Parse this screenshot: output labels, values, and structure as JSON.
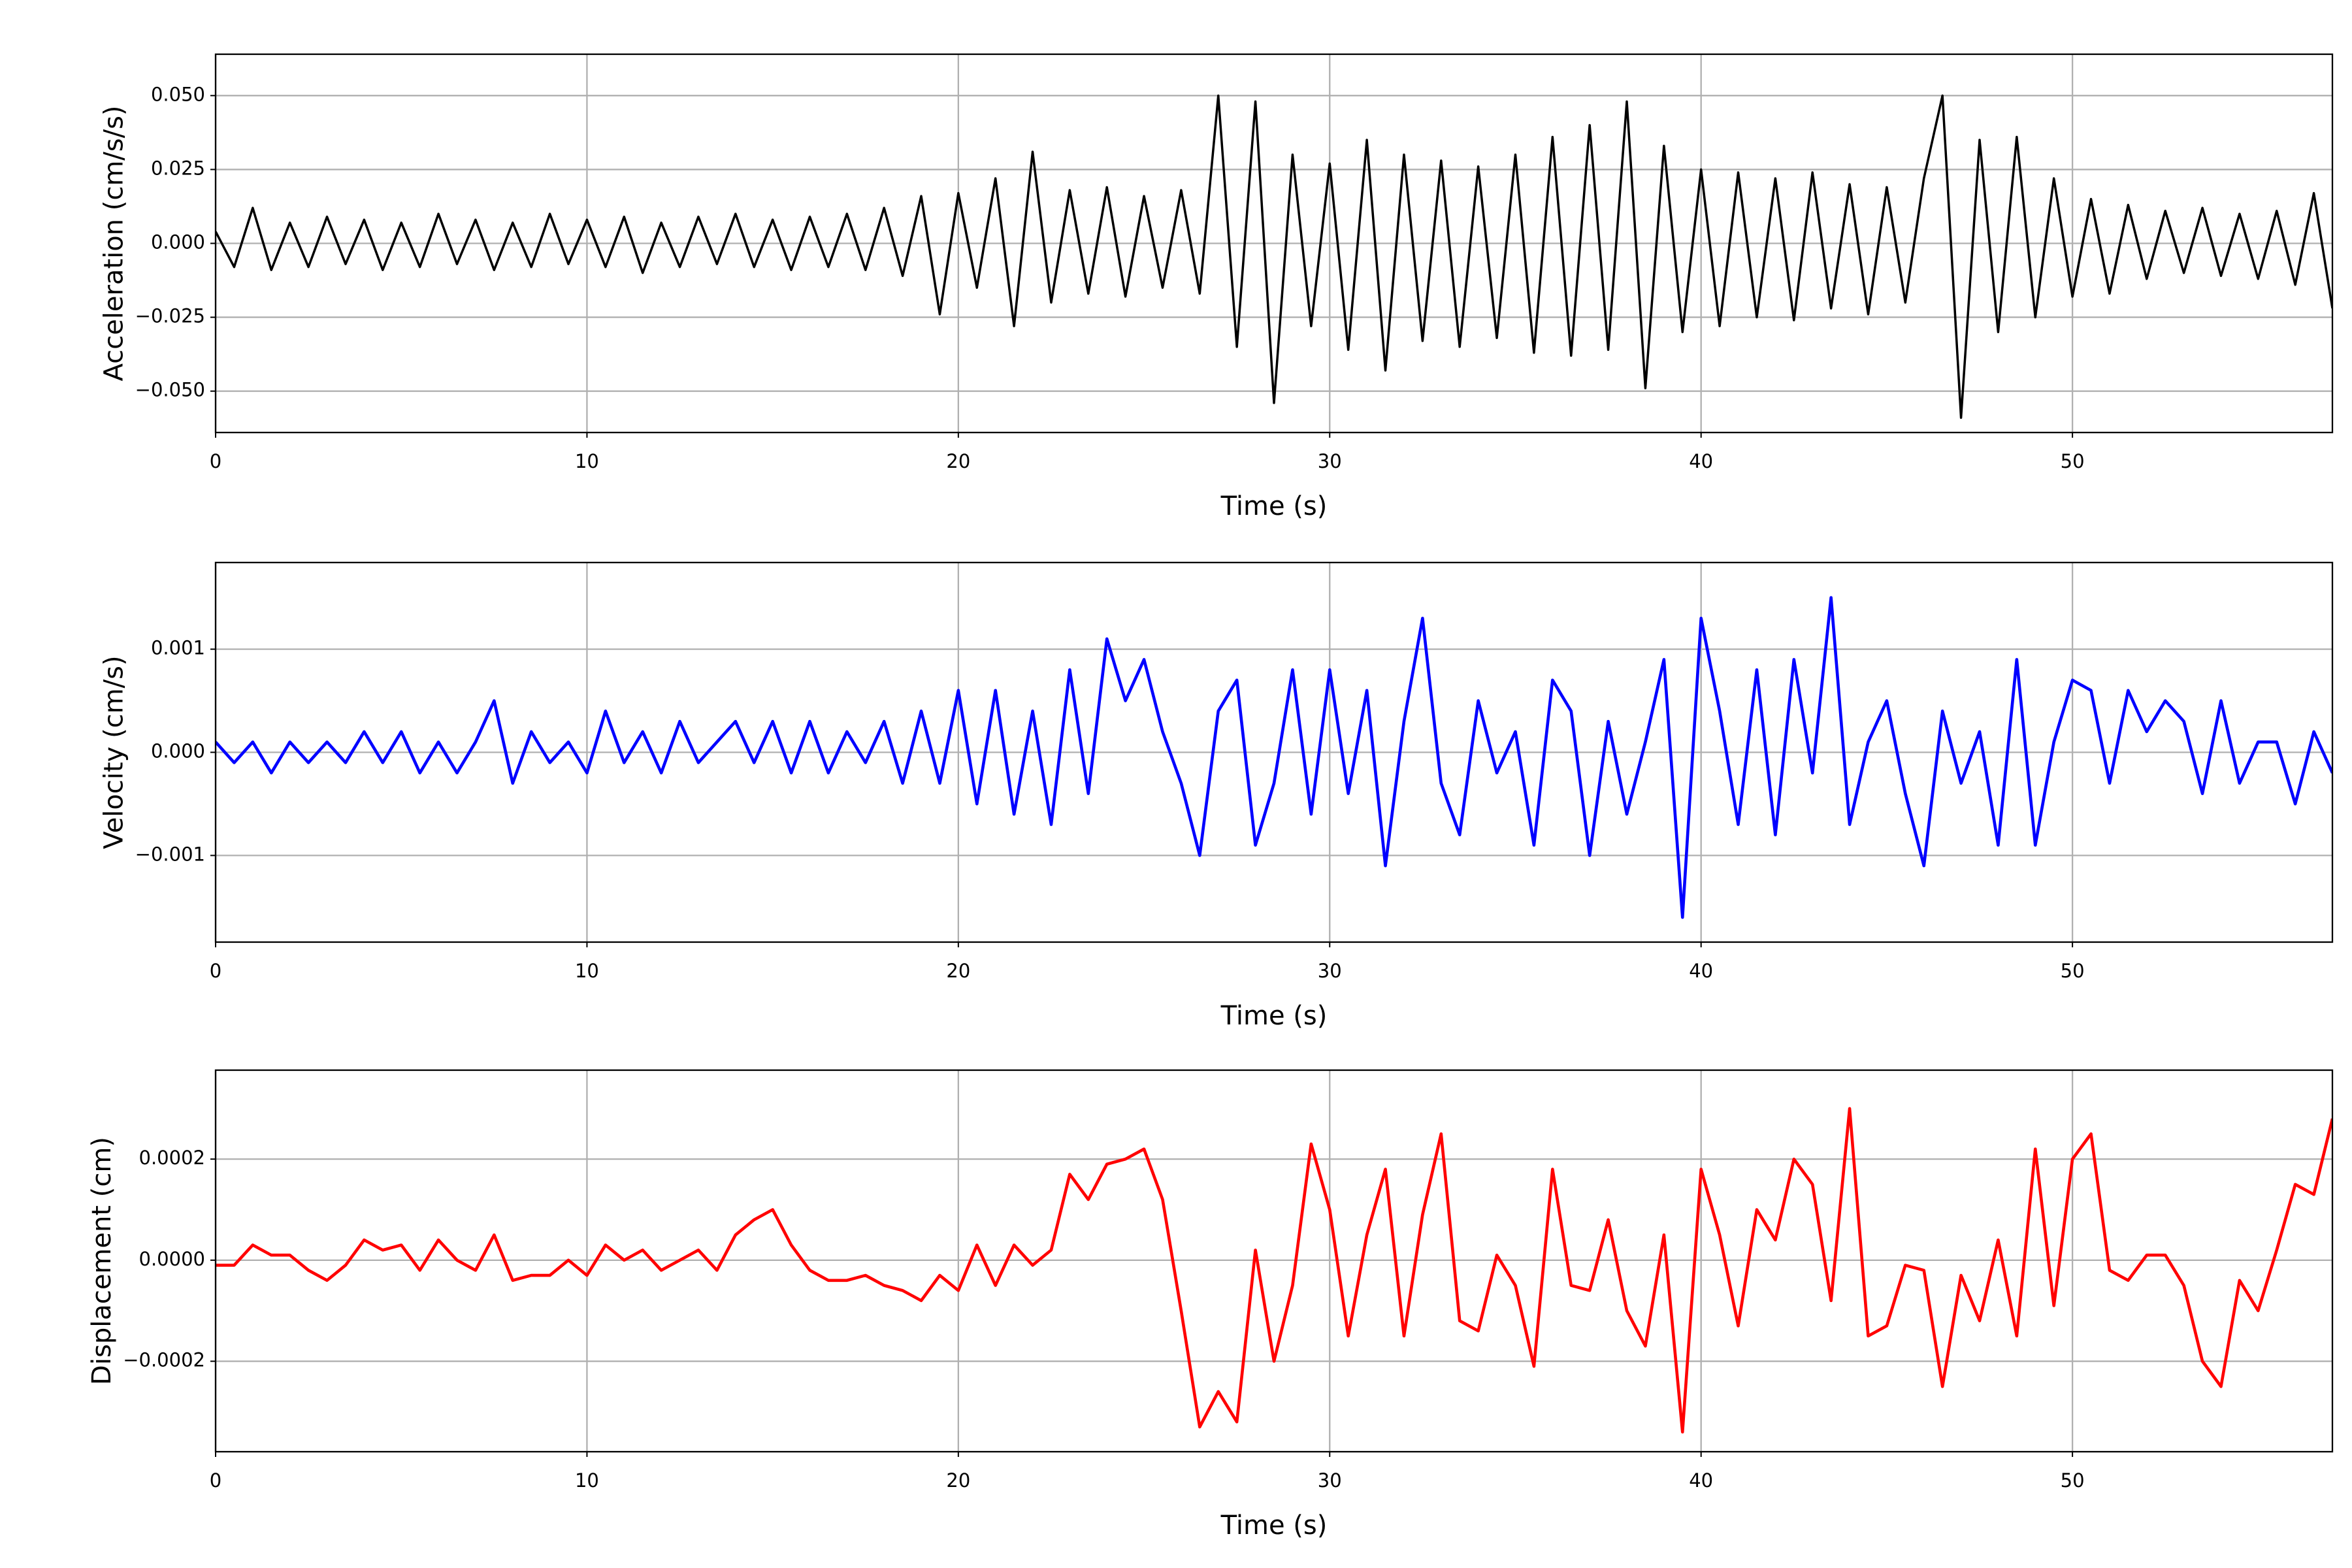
{
  "chart_data": [
    {
      "type": "line",
      "ylabel": "Acceleration (cm/s/s)",
      "xlabel": "Time (s)",
      "grid": true,
      "xlim": [
        0,
        57
      ],
      "xticks": [
        0,
        10,
        20,
        30,
        40,
        50
      ],
      "ylim": [
        -0.064,
        0.064
      ],
      "yticks": [
        {
          "value": -0.05,
          "label": "−0.050"
        },
        {
          "value": -0.025,
          "label": "−0.025"
        },
        {
          "value": 0,
          "label": "0.000"
        },
        0.025,
        {
          "value": 0.05,
          "label": "0.050"
        }
      ],
      "x": [
        0,
        0.5,
        1,
        1.5,
        2,
        2.5,
        3,
        3.5,
        4,
        4.5,
        5,
        5.5,
        6,
        6.5,
        7,
        7.5,
        8,
        8.5,
        9,
        9.5,
        10,
        10.5,
        11,
        11.5,
        12,
        12.5,
        13,
        13.5,
        14,
        14.5,
        15,
        15.5,
        16,
        16.5,
        17,
        17.5,
        18,
        18.5,
        19,
        19.5,
        20,
        20.5,
        21,
        21.5,
        22,
        22.5,
        23,
        23.5,
        24,
        24.5,
        25,
        25.5,
        26,
        26.5,
        27,
        27.5,
        28,
        28.5,
        29,
        29.5,
        30,
        30.5,
        31,
        31.5,
        32,
        32.5,
        33,
        33.5,
        34,
        34.5,
        35,
        35.5,
        36,
        36.5,
        37,
        37.5,
        38,
        38.5,
        39,
        39.5,
        40,
        40.5,
        41,
        41.5,
        42,
        42.5,
        43,
        43.5,
        44,
        44.5,
        45,
        45.5,
        46,
        46.5,
        47,
        47.5,
        48,
        48.5,
        49,
        49.5,
        50,
        50.5,
        51,
        51.5,
        52,
        52.5,
        53,
        53.5,
        54,
        54.5,
        55,
        55.5,
        56,
        56.5,
        57
      ],
      "series": [
        {
          "color": "#000000",
          "values": [
            0.004,
            -0.008,
            0.012,
            -0.009,
            0.007,
            -0.008,
            0.009,
            -0.007,
            0.008,
            -0.009,
            0.007,
            -0.008,
            0.01,
            -0.007,
            0.008,
            -0.009,
            0.007,
            -0.008,
            0.01,
            -0.007,
            0.008,
            -0.008,
            0.009,
            -0.01,
            0.007,
            -0.008,
            0.009,
            -0.007,
            0.01,
            -0.008,
            0.008,
            -0.009,
            0.009,
            -0.008,
            0.01,
            -0.009,
            0.012,
            -0.011,
            0.016,
            -0.024,
            0.017,
            -0.015,
            0.022,
            -0.028,
            0.031,
            -0.02,
            0.018,
            -0.017,
            0.019,
            -0.018,
            0.016,
            -0.015,
            0.018,
            -0.017,
            0.05,
            -0.035,
            0.048,
            -0.054,
            0.03,
            -0.028,
            0.027,
            -0.036,
            0.035,
            -0.043,
            0.03,
            -0.033,
            0.028,
            -0.035,
            0.026,
            -0.032,
            0.03,
            -0.037,
            0.036,
            -0.038,
            0.04,
            -0.036,
            0.048,
            -0.049,
            0.033,
            -0.03,
            0.025,
            -0.028,
            0.024,
            -0.025,
            0.022,
            -0.026,
            0.024,
            -0.022,
            0.02,
            -0.024,
            0.019,
            -0.02,
            0.022,
            0.05,
            -0.059,
            0.035,
            -0.03,
            0.036,
            -0.025,
            0.022,
            -0.018,
            0.015,
            -0.017,
            0.013,
            -0.012,
            0.011,
            -0.01,
            0.012,
            -0.011,
            0.01,
            -0.012,
            0.011,
            -0.014,
            0.017,
            -0.022
          ]
        }
      ]
    },
    {
      "type": "line",
      "ylabel": "Velocity (cm/s)",
      "xlabel": "Time (s)",
      "grid": true,
      "xlim": [
        0,
        57
      ],
      "xticks": [
        0,
        10,
        20,
        30,
        40,
        50
      ],
      "ylim": [
        -0.00184,
        0.00184
      ],
      "yticks": [
        {
          "value": -0.001,
          "label": "−0.001"
        },
        {
          "value": 0,
          "label": "0.000"
        },
        0.001
      ],
      "x": [
        0,
        0.5,
        1,
        1.5,
        2,
        2.5,
        3,
        3.5,
        4,
        4.5,
        5,
        5.5,
        6,
        6.5,
        7,
        7.5,
        8,
        8.5,
        9,
        9.5,
        10,
        10.5,
        11,
        11.5,
        12,
        12.5,
        13,
        13.5,
        14,
        14.5,
        15,
        15.5,
        16,
        16.5,
        17,
        17.5,
        18,
        18.5,
        19,
        19.5,
        20,
        20.5,
        21,
        21.5,
        22,
        22.5,
        23,
        23.5,
        24,
        24.5,
        25,
        25.5,
        26,
        26.5,
        27,
        27.5,
        28,
        28.5,
        29,
        29.5,
        30,
        30.5,
        31,
        31.5,
        32,
        32.5,
        33,
        33.5,
        34,
        34.5,
        35,
        35.5,
        36,
        36.5,
        37,
        37.5,
        38,
        38.5,
        39,
        39.5,
        40,
        40.5,
        41,
        41.5,
        42,
        42.5,
        43,
        43.5,
        44,
        44.5,
        45,
        45.5,
        46,
        46.5,
        47,
        47.5,
        48,
        48.5,
        49,
        49.5,
        50,
        50.5,
        51,
        51.5,
        52,
        52.5,
        53,
        53.5,
        54,
        54.5,
        55,
        55.5,
        56,
        56.5,
        57
      ],
      "series": [
        {
          "color": "#0000ff",
          "values": [
            0.0001,
            -0.0001,
            0.0001,
            -0.0002,
            0.0001,
            -0.0001,
            0.0001,
            -0.0001,
            0.0002,
            -0.0001,
            0.0002,
            -0.0002,
            0.0001,
            -0.0002,
            0.0001,
            0.0005,
            -0.0003,
            0.0002,
            -0.0001,
            0.0001,
            -0.0002,
            0.0004,
            -0.0001,
            0.0002,
            -0.0002,
            0.0003,
            -0.0001,
            0.0001,
            0.0003,
            -0.0001,
            0.0003,
            -0.0002,
            0.0003,
            -0.0002,
            0.0002,
            -0.0001,
            0.0003,
            -0.0003,
            0.0004,
            -0.0003,
            0.0006,
            -0.0005,
            0.0006,
            -0.0006,
            0.0004,
            -0.0007,
            0.0008,
            -0.0004,
            0.0011,
            0.0005,
            0.0009,
            0.0002,
            -0.0003,
            -0.001,
            0.0004,
            0.0007,
            -0.0009,
            -0.0003,
            0.0008,
            -0.0006,
            0.0008,
            -0.0004,
            0.0006,
            -0.0011,
            0.0003,
            0.0013,
            -0.0003,
            -0.0008,
            0.0005,
            -0.0002,
            0.0002,
            -0.0009,
            0.0007,
            0.0004,
            -0.001,
            0.0003,
            -0.0006,
            0.0001,
            0.0009,
            -0.0016,
            0.0013,
            0.0004,
            -0.0007,
            0.0008,
            -0.0008,
            0.0009,
            -0.0002,
            0.0015,
            -0.0007,
            0.0001,
            0.0005,
            -0.0004,
            -0.0011,
            0.0004,
            -0.0003,
            0.0002,
            -0.0009,
            0.0009,
            -0.0009,
            0.0001,
            0.0007,
            0.0006,
            -0.0003,
            0.0006,
            0.0002,
            0.0005,
            0.0003,
            -0.0004,
            0.0005,
            -0.0003,
            0.0001,
            0.0001,
            -0.0005,
            0.0002,
            -0.0002
          ]
        }
      ]
    },
    {
      "type": "line",
      "ylabel": "Displacement (cm)",
      "xlabel": "Time (s)",
      "grid": true,
      "xlim": [
        0,
        57
      ],
      "xticks": [
        0,
        10,
        20,
        30,
        40,
        50
      ],
      "ylim": [
        -0.000379,
        0.000376
      ],
      "yticks": [
        {
          "value": -0.0002,
          "label": "−0.0002"
        },
        {
          "value": 0,
          "label": "0.0000"
        },
        0.0002
      ],
      "x": [
        0,
        0.5,
        1,
        1.5,
        2,
        2.5,
        3,
        3.5,
        4,
        4.5,
        5,
        5.5,
        6,
        6.5,
        7,
        7.5,
        8,
        8.5,
        9,
        9.5,
        10,
        10.5,
        11,
        11.5,
        12,
        12.5,
        13,
        13.5,
        14,
        14.5,
        15,
        15.5,
        16,
        16.5,
        17,
        17.5,
        18,
        18.5,
        19,
        19.5,
        20,
        20.5,
        21,
        21.5,
        22,
        22.5,
        23,
        23.5,
        24,
        24.5,
        25,
        25.5,
        26,
        26.5,
        27,
        27.5,
        28,
        28.5,
        29,
        29.5,
        30,
        30.5,
        31,
        31.5,
        32,
        32.5,
        33,
        33.5,
        34,
        34.5,
        35,
        35.5,
        36,
        36.5,
        37,
        37.5,
        38,
        38.5,
        39,
        39.5,
        40,
        40.5,
        41,
        41.5,
        42,
        42.5,
        43,
        43.5,
        44,
        44.5,
        45,
        45.5,
        46,
        46.5,
        47,
        47.5,
        48,
        48.5,
        49,
        49.5,
        50,
        50.5,
        51,
        51.5,
        52,
        52.5,
        53,
        53.5,
        54,
        54.5,
        55,
        55.5,
        56,
        56.5,
        57
      ],
      "series": [
        {
          "color": "#ff0000",
          "values": [
            -1e-05,
            -1e-05,
            3e-05,
            1e-05,
            1e-05,
            -2e-05,
            -4e-05,
            -1e-05,
            4e-05,
            2e-05,
            3e-05,
            -2e-05,
            4e-05,
            0,
            -2e-05,
            5e-05,
            -4e-05,
            -3e-05,
            -3e-05,
            0,
            -3e-05,
            3e-05,
            0,
            2e-05,
            -2e-05,
            0,
            2e-05,
            -2e-05,
            5e-05,
            8e-05,
            0.0001,
            3e-05,
            -2e-05,
            -4e-05,
            -4e-05,
            -3e-05,
            -5e-05,
            -6e-05,
            -8e-05,
            -3e-05,
            -6e-05,
            3e-05,
            -5e-05,
            3e-05,
            -1e-05,
            2e-05,
            0.00017,
            0.00012,
            0.00019,
            0.0002,
            0.00022,
            0.00012,
            -0.0001,
            -0.00033,
            -0.00026,
            -0.00032,
            2e-05,
            -0.0002,
            -5e-05,
            0.00023,
            0.0001,
            -0.00015,
            5e-05,
            0.00018,
            -0.00015,
            9e-05,
            0.00025,
            -0.00012,
            -0.00014,
            1e-05,
            -5e-05,
            -0.00021,
            0.00018,
            -5e-05,
            -6e-05,
            8e-05,
            -0.0001,
            -0.00017,
            5e-05,
            -0.00034,
            0.00018,
            5e-05,
            -0.00013,
            0.0001,
            4e-05,
            0.0002,
            0.00015,
            -8e-05,
            0.0003,
            -0.00015,
            -0.00013,
            -1e-05,
            -2e-05,
            -0.00025,
            -3e-05,
            -0.00012,
            4e-05,
            -0.00015,
            0.00022,
            -9e-05,
            0.0002,
            0.00025,
            -2e-05,
            -4e-05,
            1e-05,
            1e-05,
            -5e-05,
            -0.0002,
            -0.00025,
            -4e-05,
            -0.0001,
            2e-05,
            0.00015,
            0.00013,
            0.00028
          ]
        }
      ]
    }
  ]
}
